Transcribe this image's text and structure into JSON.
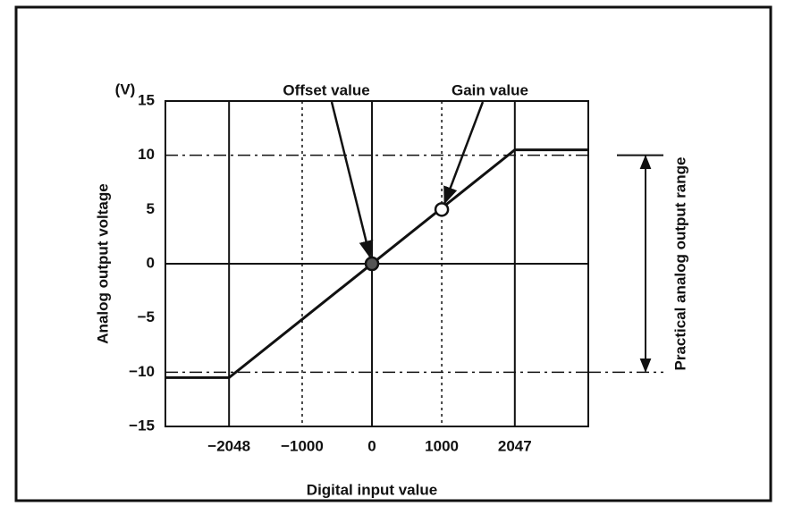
{
  "chart_data": {
    "type": "line",
    "y_unit": "(V)",
    "ylabel": "Analog output voltage",
    "xlabel": "Digital input value",
    "x": [
      -2960,
      -2048,
      2047,
      3100
    ],
    "series": [
      {
        "color": "#111111",
        "values": [
          -10.5,
          -10.5,
          10.5,
          10.5
        ]
      }
    ],
    "xlim": [
      -2960,
      3100
    ],
    "ylim": [
      -15,
      15
    ],
    "xticks": [
      {
        "value": -2048,
        "label": "−2048"
      },
      {
        "value": -1000,
        "label": "−1000"
      },
      0,
      1000,
      2047
    ],
    "yticks": [
      15,
      10,
      5,
      0,
      {
        "value": -5,
        "label": "−5"
      },
      {
        "value": -10,
        "label": "−10"
      },
      {
        "value": -15,
        "label": "−15"
      }
    ],
    "xtick_styles": [
      "solid",
      "dotted",
      "solid",
      "dotted",
      "solid"
    ],
    "ytick_styles": [
      "none",
      "dash-dot",
      "none",
      "solid",
      "none",
      "dash-dot",
      "none"
    ],
    "points": [
      {
        "name": "Offset value",
        "x": 0,
        "y": 0,
        "marker": "filled"
      },
      {
        "name": "Gain value",
        "x": 1000,
        "y": 5,
        "marker": "open"
      }
    ],
    "range_annotation": {
      "label": "Practical analog output range",
      "range": [
        -10,
        10
      ]
    }
  }
}
